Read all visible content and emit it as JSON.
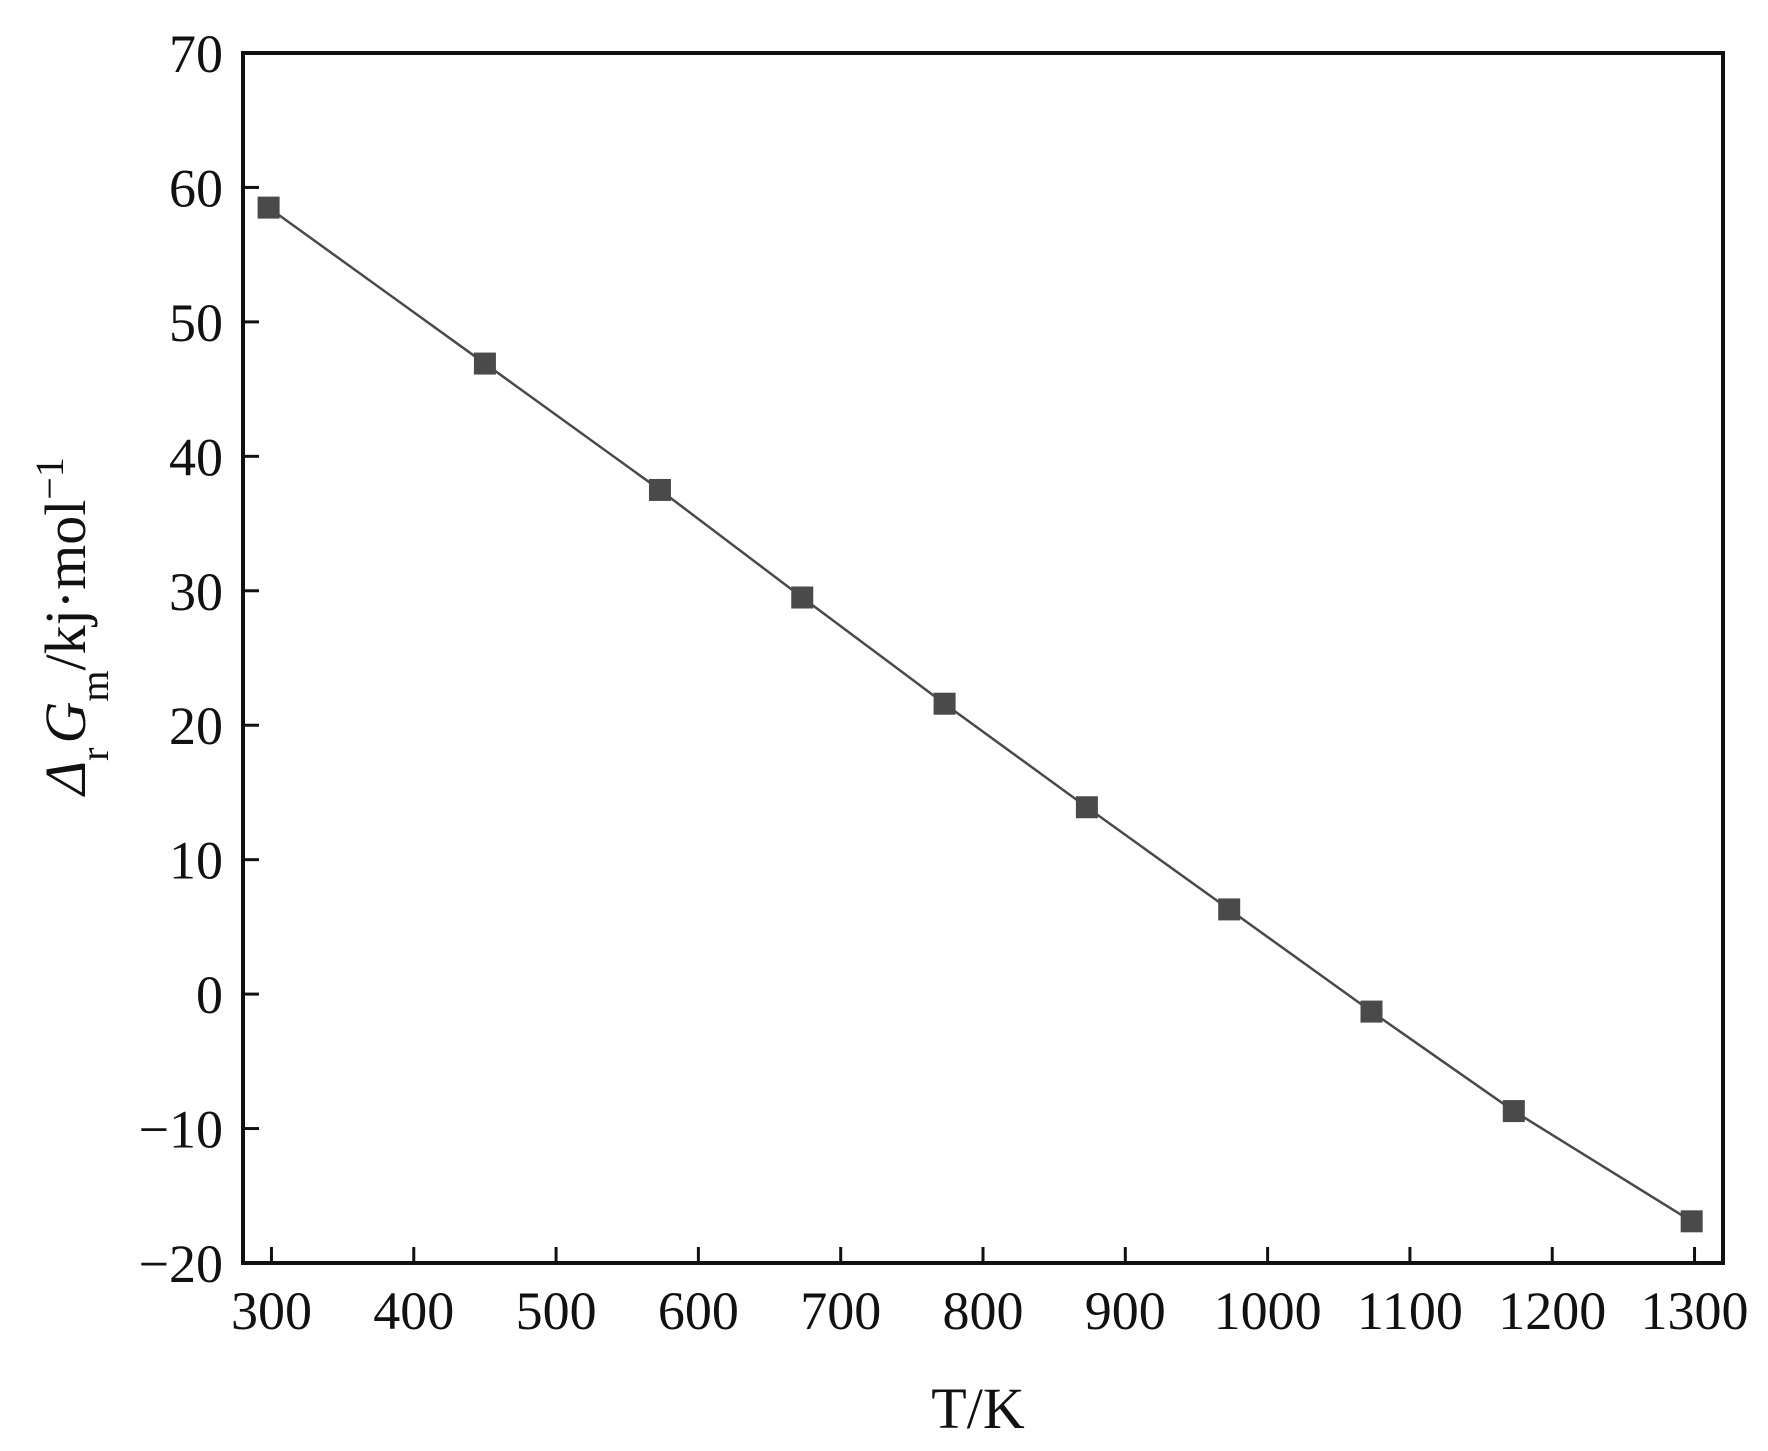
{
  "chart_data": {
    "type": "line",
    "title": "",
    "xlabel": "T/K",
    "ylabel": {
      "delta": "Δ",
      "delta_sub": "r",
      "symbol": "G",
      "symbol_sub": "m",
      "unit": "/kj·mol",
      "unit_sup": "−1"
    },
    "xlim": [
      280,
      1320
    ],
    "ylim": [
      -20,
      70
    ],
    "xticks": [
      300,
      400,
      500,
      600,
      700,
      800,
      900,
      1000,
      1100,
      1200,
      1300
    ],
    "yticks": [
      -20,
      -10,
      0,
      10,
      20,
      30,
      40,
      50,
      60,
      70
    ],
    "ytick_labels": [
      "−20",
      "−10",
      "0",
      "10",
      "20",
      "30",
      "40",
      "50",
      "60",
      "70"
    ],
    "grid": false,
    "legend": "none",
    "series": [
      {
        "marker": "square",
        "color": "#4a4a4a",
        "x": [
          298,
          450,
          573,
          673,
          773,
          873,
          973,
          1073,
          1173,
          1298
        ],
        "y": [
          58.5,
          46.9,
          37.5,
          29.5,
          21.6,
          13.9,
          6.3,
          -1.3,
          -8.7,
          -16.9
        ]
      }
    ]
  }
}
